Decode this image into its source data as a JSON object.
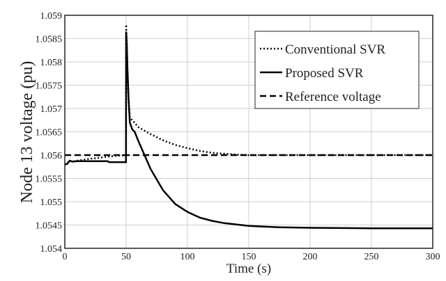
{
  "chart_data": {
    "type": "line",
    "title": "",
    "xlabel": "Time (s)",
    "ylabel": "Node 13 voltage (pu)",
    "xlim": [
      0,
      300
    ],
    "ylim": [
      1.054,
      1.059
    ],
    "xticks": [
      0,
      50,
      100,
      150,
      200,
      250,
      300
    ],
    "yticks": [
      "1.054",
      "1.0545",
      "1.055",
      "1.0555",
      "1.056",
      "1.0565",
      "1.057",
      "1.0575",
      "1.058",
      "1.0585",
      "1.059"
    ],
    "grid": true,
    "legend_position": "top-right",
    "series": [
      {
        "name": "Conventional SVR",
        "style": "dotted",
        "color": "#000000",
        "x": [
          0,
          2,
          4,
          6,
          10,
          20,
          30,
          40,
          49.9,
          50,
          50.5,
          51,
          52,
          53,
          55,
          60,
          70,
          80,
          90,
          100,
          110,
          120,
          130,
          140,
          150,
          175,
          200,
          250,
          300
        ],
        "y": [
          1.0558,
          1.05582,
          1.05588,
          1.05586,
          1.05588,
          1.05592,
          1.05595,
          1.05598,
          1.056,
          1.0588,
          1.0584,
          1.0578,
          1.0572,
          1.0568,
          1.05675,
          1.0566,
          1.05645,
          1.05632,
          1.05622,
          1.05615,
          1.05609,
          1.05605,
          1.05603,
          1.05601,
          1.056,
          1.056,
          1.056,
          1.056,
          1.056
        ]
      },
      {
        "name": "Proposed SVR",
        "style": "solid",
        "color": "#000000",
        "x": [
          0,
          2,
          4,
          6,
          10,
          20,
          35,
          36,
          49.9,
          50,
          50.5,
          51,
          52,
          53,
          55,
          57,
          60,
          65,
          70,
          80,
          90,
          100,
          110,
          120,
          130,
          150,
          175,
          200,
          250,
          300
        ],
        "y": [
          1.0558,
          1.05581,
          1.05588,
          1.05586,
          1.05587,
          1.05587,
          1.05587,
          1.05585,
          1.05585,
          1.05865,
          1.0584,
          1.0579,
          1.0572,
          1.0567,
          1.05655,
          1.0565,
          1.0563,
          1.056,
          1.0557,
          1.05525,
          1.05495,
          1.05478,
          1.05466,
          1.05459,
          1.05454,
          1.05448,
          1.05445,
          1.05444,
          1.05443,
          1.05443
        ]
      },
      {
        "name": "Reference voltage",
        "style": "dashed",
        "color": "#000000",
        "x": [
          0,
          300
        ],
        "y": [
          1.056,
          1.056
        ]
      }
    ]
  }
}
